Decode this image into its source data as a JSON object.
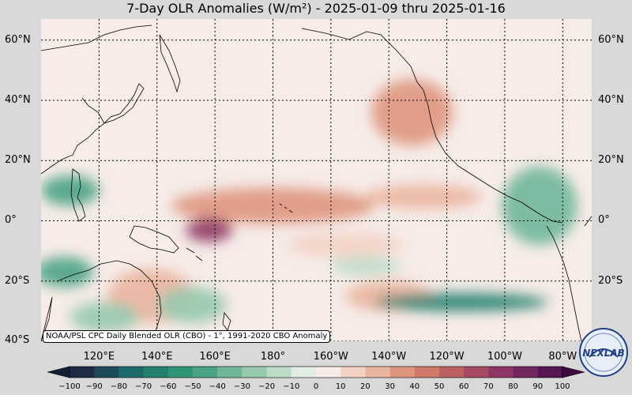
{
  "title": {
    "text": "7-Day OLR Anomalies (W/m²) - 2025-01-09 thru 2025-01-16"
  },
  "map": {
    "extent": {
      "lon_min": 100,
      "lon_max": 290,
      "lat_min": -40,
      "lat_max": 67
    },
    "lat_labels": [
      {
        "lat": 60,
        "text": "60°N"
      },
      {
        "lat": 40,
        "text": "40°N"
      },
      {
        "lat": 20,
        "text": "20°N"
      },
      {
        "lat": 0,
        "text": "0°"
      },
      {
        "lat": -20,
        "text": "20°S"
      },
      {
        "lat": -40,
        "text": "40°S"
      }
    ],
    "lon_labels": [
      {
        "lon": 120,
        "text": "120°E"
      },
      {
        "lon": 140,
        "text": "140°E"
      },
      {
        "lon": 160,
        "text": "160°E"
      },
      {
        "lon": 180,
        "text": "180°"
      },
      {
        "lon": 200,
        "text": "160°W"
      },
      {
        "lon": 220,
        "text": "140°W"
      },
      {
        "lon": 240,
        "text": "120°W"
      },
      {
        "lon": 260,
        "text": "100°W"
      },
      {
        "lon": 280,
        "text": "80°W"
      }
    ],
    "credit": "NOAA/PSL CPC Daily Blended OLR (CBO) - 1°, 1991-2020 CBO Anomaly"
  },
  "colorbar": {
    "ticks": [
      "−100",
      "−90",
      "−80",
      "−70",
      "−60",
      "−50",
      "−40",
      "−30",
      "−20",
      "−10",
      "0",
      "10",
      "20",
      "30",
      "40",
      "50",
      "60",
      "70",
      "80",
      "90",
      "100"
    ],
    "colors": [
      "#1f2a44",
      "#1d4a5a",
      "#1c6a6c",
      "#23806f",
      "#2f9577",
      "#4aa385",
      "#70b79a",
      "#97c9ae",
      "#bcdcc8",
      "#e0eee4",
      "#f7ece8",
      "#f3d2c4",
      "#eab5a0",
      "#df967f",
      "#cf7a68",
      "#bc6062",
      "#a74a63",
      "#8f3665",
      "#722660",
      "#541552"
    ],
    "low_color": "#142034",
    "high_color": "#3c0c3e"
  },
  "logo": {
    "text": "NEXLAB"
  },
  "features": {
    "positive_anomalies": [
      {
        "lon": 180,
        "lat": 5,
        "rx": 35,
        "ry": 6,
        "value": 35
      },
      {
        "lon": 158,
        "lat": -3,
        "rx": 8,
        "ry": 4,
        "value": 70
      },
      {
        "lon": 228,
        "lat": 36,
        "rx": 14,
        "ry": 11,
        "value": 35
      },
      {
        "lon": 232,
        "lat": 8,
        "rx": 20,
        "ry": 4,
        "value": 25
      },
      {
        "lon": 138,
        "lat": -25,
        "rx": 15,
        "ry": 9,
        "value": 20
      },
      {
        "lon": 220,
        "lat": -25,
        "rx": 15,
        "ry": 5,
        "value": 25
      },
      {
        "lon": 205,
        "lat": -8,
        "rx": 20,
        "ry": 4,
        "value": 15
      }
    ],
    "negative_anomalies": [
      {
        "lon": 245,
        "lat": -27,
        "rx": 30,
        "ry": 3,
        "value": -70
      },
      {
        "lon": 110,
        "lat": 10,
        "rx": 10,
        "ry": 5,
        "value": -45
      },
      {
        "lon": 108,
        "lat": -17,
        "rx": 10,
        "ry": 5,
        "value": -45
      },
      {
        "lon": 272,
        "lat": 5,
        "rx": 13,
        "ry": 13,
        "value": -35
      },
      {
        "lon": 122,
        "lat": -32,
        "rx": 12,
        "ry": 5,
        "value": -30
      },
      {
        "lon": 152,
        "lat": -28,
        "rx": 12,
        "ry": 6,
        "value": -25
      },
      {
        "lon": 212,
        "lat": -15,
        "rx": 12,
        "ry": 3,
        "value": -20
      }
    ]
  }
}
